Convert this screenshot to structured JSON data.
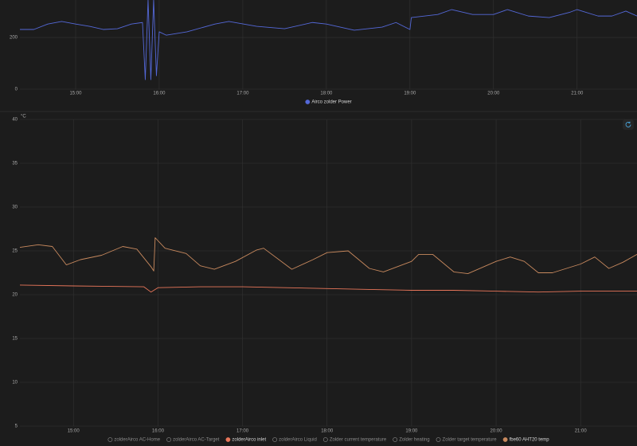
{
  "chart_data": [
    {
      "type": "line",
      "xlim": [
        "14:20",
        "21:43"
      ],
      "xticks": [
        "15:00",
        "16:00",
        "17:00",
        "18:00",
        "19:00",
        "20:00",
        "21:00"
      ],
      "ylim": [
        0,
        345
      ],
      "yticks": [
        0,
        200
      ],
      "grid": true,
      "series": [
        {
          "name": "Airco zolder Power",
          "color": "#5468d8",
          "x": [
            "14:20",
            "14:30",
            "14:40",
            "14:50",
            "15:00",
            "15:10",
            "15:20",
            "15:30",
            "15:40",
            "15:48",
            "15:50",
            "15:52",
            "15:54",
            "15:56",
            "15:58",
            "16:00",
            "16:05",
            "16:20",
            "16:40",
            "16:50",
            "17:10",
            "17:30",
            "17:50",
            "18:00",
            "18:20",
            "18:40",
            "18:50",
            "19:00",
            "19:01",
            "19:20",
            "19:30",
            "19:45",
            "20:00",
            "20:10",
            "20:25",
            "20:40",
            "20:55",
            "21:00",
            "21:15",
            "21:25",
            "21:35",
            "21:43"
          ],
          "values": [
            231,
            231,
            252,
            262,
            252,
            243,
            231,
            234,
            252,
            258,
            37,
            345,
            37,
            345,
            52,
            222,
            209,
            222,
            252,
            262,
            243,
            234,
            258,
            252,
            228,
            240,
            258,
            231,
            277,
            289,
            308,
            289,
            289,
            308,
            283,
            277,
            298,
            308,
            283,
            283,
            302,
            283
          ]
        }
      ]
    },
    {
      "type": "line",
      "unit": "°C",
      "xlim": [
        "14:22",
        "21:40"
      ],
      "xticks": [
        "15:00",
        "16:00",
        "17:00",
        "18:00",
        "19:00",
        "20:00",
        "21:00"
      ],
      "ylim": [
        5,
        40
      ],
      "yticks": [
        5,
        10,
        15,
        20,
        25,
        30,
        35,
        40
      ],
      "grid": true,
      "series": [
        {
          "name": "zolderAirco AC-Home",
          "hidden": true
        },
        {
          "name": "zolderAirco AC-Target",
          "hidden": true
        },
        {
          "name": "zolderAirco inlet",
          "color": "#e8765a",
          "x": [
            "14:22",
            "15:00",
            "15:50",
            "15:55",
            "16:00",
            "16:30",
            "17:00",
            "17:30",
            "18:00",
            "18:30",
            "19:00",
            "19:30",
            "20:00",
            "20:30",
            "21:00",
            "21:40"
          ],
          "values": [
            21.1,
            21.0,
            20.9,
            20.3,
            20.8,
            20.9,
            20.9,
            20.8,
            20.7,
            20.6,
            20.5,
            20.5,
            20.4,
            20.3,
            20.4,
            20.4
          ]
        },
        {
          "name": "zolderAirco Liquid",
          "hidden": true
        },
        {
          "name": "Zolder current temperature",
          "hidden": true
        },
        {
          "name": "Zolder heating",
          "hidden": true
        },
        {
          "name": "Zolder target temperature",
          "hidden": true
        },
        {
          "name": "fbe60 AHT20 temp",
          "color": "#c8895e",
          "x": [
            "14:22",
            "14:35",
            "14:45",
            "14:55",
            "15:05",
            "15:20",
            "15:35",
            "15:45",
            "15:55",
            "15:57",
            "15:58",
            "16:05",
            "16:20",
            "16:30",
            "16:40",
            "16:55",
            "17:10",
            "17:15",
            "17:30",
            "17:35",
            "17:50",
            "18:00",
            "18:15",
            "18:30",
            "18:40",
            "19:00",
            "19:05",
            "19:15",
            "19:30",
            "19:40",
            "20:00",
            "20:10",
            "20:20",
            "20:30",
            "20:40",
            "21:00",
            "21:10",
            "21:20",
            "21:30",
            "21:40"
          ],
          "values": [
            25.4,
            25.7,
            25.5,
            23.4,
            24.0,
            24.5,
            25.5,
            25.2,
            23.2,
            22.7,
            26.5,
            25.3,
            24.7,
            23.3,
            22.9,
            23.8,
            25.1,
            25.3,
            23.5,
            22.9,
            24.0,
            24.8,
            25.0,
            23.0,
            22.6,
            23.8,
            24.6,
            24.6,
            22.6,
            22.4,
            23.8,
            24.3,
            23.8,
            22.5,
            22.5,
            23.5,
            24.3,
            23.0,
            23.7,
            24.6
          ]
        }
      ]
    }
  ]
}
